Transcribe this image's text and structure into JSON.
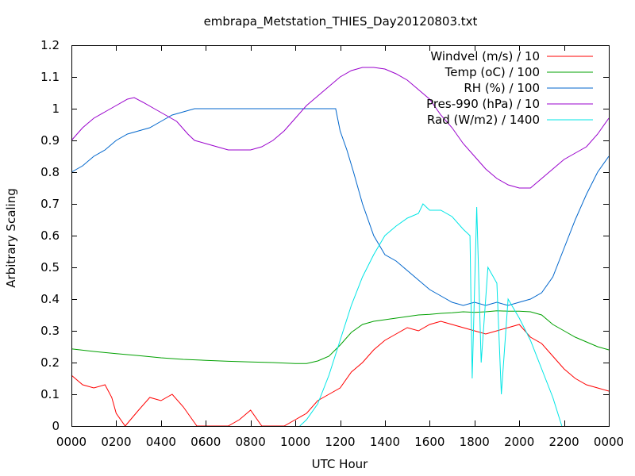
{
  "chart_data": {
    "type": "line",
    "title": "embrapa_Metstation_THIES_Day20120803.txt",
    "xlabel": "UTC Hour",
    "ylabel": "Arbitrary Scaling",
    "xlim": [
      0,
      24
    ],
    "ylim": [
      0,
      1.2
    ],
    "x_ticks": [
      0,
      2,
      4,
      6,
      8,
      10,
      12,
      14,
      16,
      18,
      20,
      22,
      24
    ],
    "x_tick_labels": [
      "0000",
      "0200",
      "0400",
      "0600",
      "0800",
      "1000",
      "1200",
      "1400",
      "1600",
      "1800",
      "2000",
      "2200",
      "0000"
    ],
    "y_ticks": [
      0,
      0.1,
      0.2,
      0.3,
      0.4,
      0.5,
      0.6,
      0.7,
      0.8,
      0.9,
      1,
      1.1,
      1.2
    ],
    "y_tick_labels": [
      "0",
      "0.1",
      "0.2",
      "0.3",
      "0.4",
      "0.5",
      "0.6",
      "0.7",
      "0.8",
      "0.9",
      "1",
      "1.1",
      "1.2"
    ],
    "grid": false,
    "legend_position": "top-right",
    "series": [
      {
        "name": "Windvel (m/s) / 10",
        "color": "#ff0000",
        "x": [
          0,
          0.5,
          1,
          1.5,
          1.8,
          2,
          2.4,
          3,
          3.5,
          4,
          4.5,
          5,
          5.3,
          5.6,
          6,
          6.5,
          7,
          7.5,
          8,
          8.5,
          9,
          9.5,
          10,
          10.5,
          11,
          11.5,
          12,
          12.5,
          13,
          13.5,
          14,
          14.5,
          15,
          15.5,
          16,
          16.5,
          17,
          17.5,
          18,
          18.5,
          19,
          19.5,
          20,
          20.5,
          21,
          21.5,
          22,
          22.5,
          23,
          23.5,
          24
        ],
        "y": [
          0.16,
          0.13,
          0.12,
          0.13,
          0.09,
          0.04,
          0.0,
          0.05,
          0.09,
          0.08,
          0.1,
          0.06,
          0.03,
          0.0,
          0.0,
          0.0,
          0.0,
          0.02,
          0.05,
          0.0,
          0.0,
          0.0,
          0.02,
          0.04,
          0.08,
          0.1,
          0.12,
          0.17,
          0.2,
          0.24,
          0.27,
          0.29,
          0.31,
          0.3,
          0.32,
          0.33,
          0.32,
          0.31,
          0.3,
          0.29,
          0.3,
          0.31,
          0.32,
          0.28,
          0.26,
          0.22,
          0.18,
          0.15,
          0.13,
          0.12,
          0.11
        ]
      },
      {
        "name": "Temp (oC) / 100",
        "color": "#00a000",
        "x": [
          0,
          1,
          2,
          3,
          4,
          5,
          6,
          7,
          8,
          9,
          10,
          10.5,
          11,
          11.5,
          12,
          12.5,
          13,
          13.5,
          14,
          14.5,
          15,
          15.5,
          16,
          16.5,
          17,
          17.5,
          18,
          18.5,
          19,
          19.5,
          20,
          20.5,
          21,
          21.5,
          22,
          22.5,
          23,
          23.5,
          24
        ],
        "y": [
          0.243,
          0.235,
          0.228,
          0.222,
          0.215,
          0.21,
          0.207,
          0.204,
          0.202,
          0.2,
          0.197,
          0.197,
          0.205,
          0.22,
          0.255,
          0.295,
          0.32,
          0.33,
          0.335,
          0.34,
          0.345,
          0.35,
          0.352,
          0.355,
          0.357,
          0.36,
          0.358,
          0.36,
          0.363,
          0.362,
          0.362,
          0.36,
          0.35,
          0.32,
          0.3,
          0.28,
          0.265,
          0.25,
          0.24
        ]
      },
      {
        "name": "RH (%) / 100",
        "color": "#0066cc",
        "x": [
          0,
          0.5,
          1,
          1.5,
          2,
          2.5,
          3,
          3.5,
          4,
          4.5,
          5,
          5.5,
          6,
          7,
          8,
          9,
          10,
          11,
          11.8,
          12,
          12.3,
          12.6,
          13,
          13.5,
          14,
          14.5,
          15,
          15.5,
          16,
          16.5,
          17,
          17.5,
          18,
          18.5,
          19,
          19.5,
          20,
          20.5,
          21,
          21.5,
          22,
          22.5,
          23,
          23.5,
          24
        ],
        "y": [
          0.8,
          0.82,
          0.85,
          0.87,
          0.9,
          0.92,
          0.93,
          0.94,
          0.96,
          0.98,
          0.99,
          1.0,
          1.0,
          1.0,
          1.0,
          1.0,
          1.0,
          1.0,
          1.0,
          0.93,
          0.87,
          0.8,
          0.7,
          0.6,
          0.54,
          0.52,
          0.49,
          0.46,
          0.43,
          0.41,
          0.39,
          0.38,
          0.39,
          0.38,
          0.39,
          0.38,
          0.39,
          0.4,
          0.42,
          0.47,
          0.56,
          0.65,
          0.73,
          0.8,
          0.85
        ]
      },
      {
        "name": "Pres-990 (hPa) / 10",
        "color": "#9900cc",
        "x": [
          0,
          0.5,
          1,
          1.5,
          2,
          2.5,
          2.8,
          3.2,
          3.7,
          4.2,
          4.7,
          5.2,
          5.5,
          6,
          6.5,
          7,
          7.5,
          8,
          8.5,
          9,
          9.5,
          10,
          10.5,
          11,
          11.5,
          12,
          12.5,
          13,
          13.5,
          14,
          14.5,
          15,
          15.5,
          16,
          16.5,
          17,
          17.5,
          18,
          18.5,
          19,
          19.5,
          20,
          20.5,
          21,
          21.5,
          22,
          22.5,
          23,
          23.5,
          24
        ],
        "y": [
          0.9,
          0.94,
          0.97,
          0.99,
          1.01,
          1.03,
          1.035,
          1.02,
          1.0,
          0.98,
          0.96,
          0.92,
          0.9,
          0.89,
          0.88,
          0.87,
          0.87,
          0.87,
          0.88,
          0.9,
          0.93,
          0.97,
          1.01,
          1.04,
          1.07,
          1.1,
          1.12,
          1.13,
          1.13,
          1.125,
          1.11,
          1.09,
          1.06,
          1.03,
          0.98,
          0.94,
          0.89,
          0.85,
          0.81,
          0.78,
          0.76,
          0.75,
          0.75,
          0.78,
          0.81,
          0.84,
          0.86,
          0.88,
          0.92,
          0.97
        ]
      },
      {
        "name": "Rad (W/m2) / 1400",
        "color": "#00e5e5",
        "x": [
          10.2,
          10.5,
          11,
          11.5,
          12,
          12.5,
          13,
          13.5,
          14,
          14.5,
          15,
          15.5,
          15.7,
          16,
          16.5,
          17,
          17.5,
          17.8,
          17.9,
          18.1,
          18.3,
          18.6,
          19,
          19.2,
          19.5,
          20,
          20.5,
          21,
          21.5,
          21.9
        ],
        "y": [
          0.0,
          0.02,
          0.07,
          0.16,
          0.27,
          0.38,
          0.47,
          0.54,
          0.6,
          0.63,
          0.655,
          0.67,
          0.7,
          0.68,
          0.68,
          0.66,
          0.62,
          0.6,
          0.15,
          0.69,
          0.2,
          0.5,
          0.45,
          0.1,
          0.4,
          0.34,
          0.27,
          0.18,
          0.09,
          0.0
        ]
      }
    ]
  }
}
